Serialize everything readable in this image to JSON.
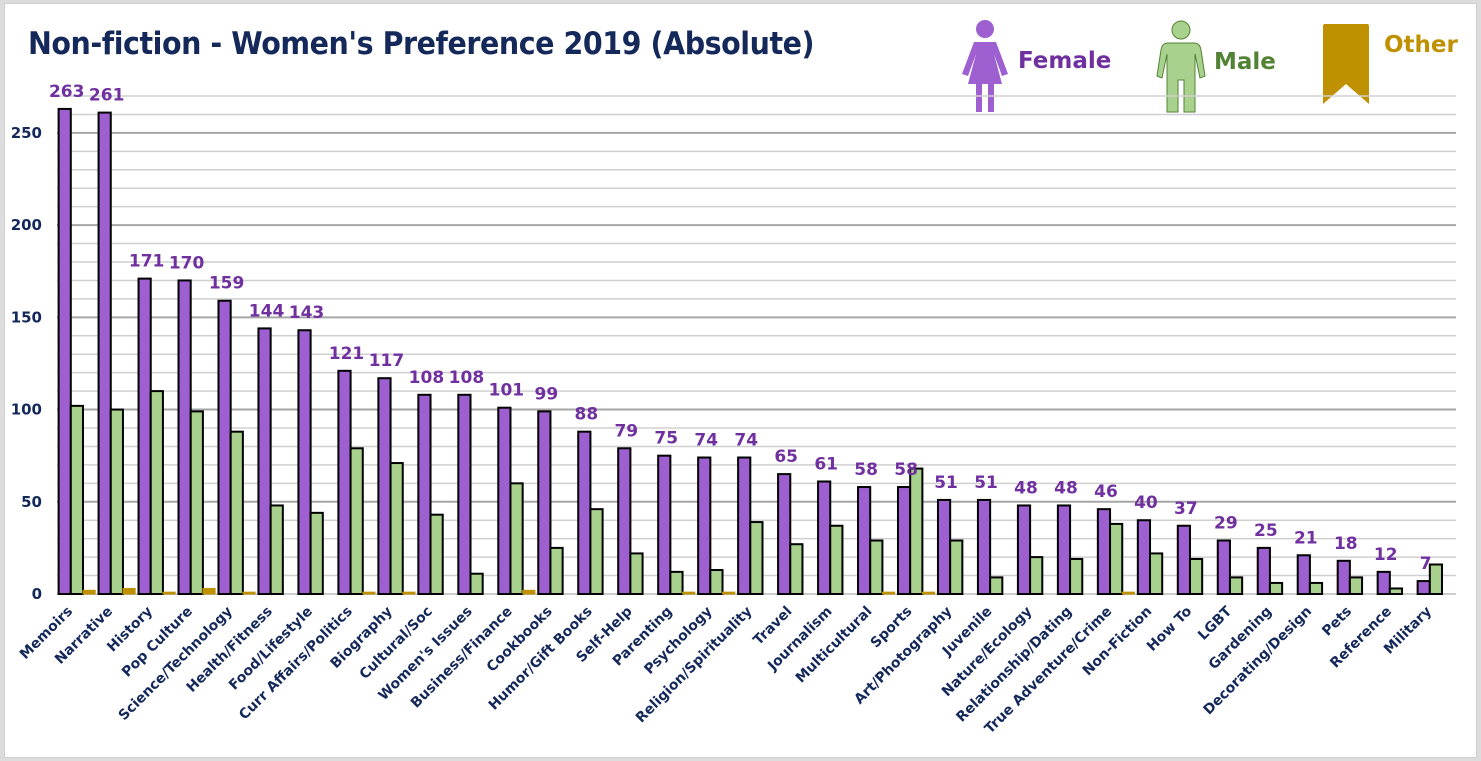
{
  "chart_data": {
    "type": "bar",
    "title": "Non-fiction - Women's Preference 2019 (Absolute)",
    "xlabel": "",
    "ylabel": "",
    "ylim": [
      0,
      270
    ],
    "yticks": [
      0,
      50,
      100,
      150,
      200,
      250
    ],
    "minor_grid_step": 10,
    "grid": true,
    "legend_position": "top-right",
    "categories": [
      "Memoirs",
      "Narrative",
      "History",
      "Pop Culture",
      "Science/Technology",
      "Health/Fitness",
      "Food/Lifestyle",
      "Curr Affairs/Politics",
      "Biography",
      "Cultural/Soc",
      "Women's Issues",
      "Business/Finance",
      "Cookbooks",
      "Humor/Gift Books",
      "Self-Help",
      "Parenting",
      "Psychology",
      "Religion/Spirituality",
      "Travel",
      "Journalism",
      "Multicultural",
      "Sports",
      "Art/Photography",
      "Juvenile",
      "Nature/Ecology",
      "Relationship/Dating",
      "True Adventure/Crime",
      "Non-Fiction",
      "How To",
      "LGBT",
      "Gardening",
      "Decorating/Design",
      "Pets",
      "Reference",
      "Military"
    ],
    "series": [
      {
        "name": "Female",
        "color": "#9e5fd1",
        "label_color": "#7030a0",
        "show_labels": true,
        "values": [
          263,
          261,
          171,
          170,
          159,
          144,
          143,
          121,
          117,
          108,
          108,
          101,
          99,
          88,
          79,
          75,
          74,
          74,
          65,
          61,
          58,
          58,
          51,
          51,
          48,
          48,
          46,
          40,
          37,
          29,
          25,
          21,
          18,
          12,
          7
        ]
      },
      {
        "name": "Male",
        "color": "#a9d18e",
        "label_color": "#548235",
        "show_labels": false,
        "values": [
          102,
          100,
          110,
          99,
          88,
          48,
          44,
          79,
          71,
          43,
          11,
          60,
          25,
          46,
          22,
          12,
          13,
          39,
          27,
          37,
          29,
          68,
          29,
          9,
          20,
          19,
          38,
          22,
          19,
          9,
          6,
          6,
          9,
          3,
          16
        ]
      },
      {
        "name": "Other",
        "color": "#bf9000",
        "label_color": "#bf9000",
        "show_labels": false,
        "values": [
          2,
          3,
          1,
          3,
          1,
          0,
          0,
          1,
          1,
          0,
          0,
          2,
          0,
          0,
          0,
          1,
          1,
          0,
          0,
          0,
          1,
          1,
          0,
          0,
          0,
          0,
          1,
          0,
          0,
          0,
          0,
          0,
          0,
          0,
          0
        ]
      }
    ]
  },
  "legend": {
    "female": {
      "label": "Female",
      "icon": "female-person-icon"
    },
    "male": {
      "label": "Male",
      "icon": "male-person-icon"
    },
    "other": {
      "label": "Other",
      "icon": "bookmark-icon"
    }
  }
}
